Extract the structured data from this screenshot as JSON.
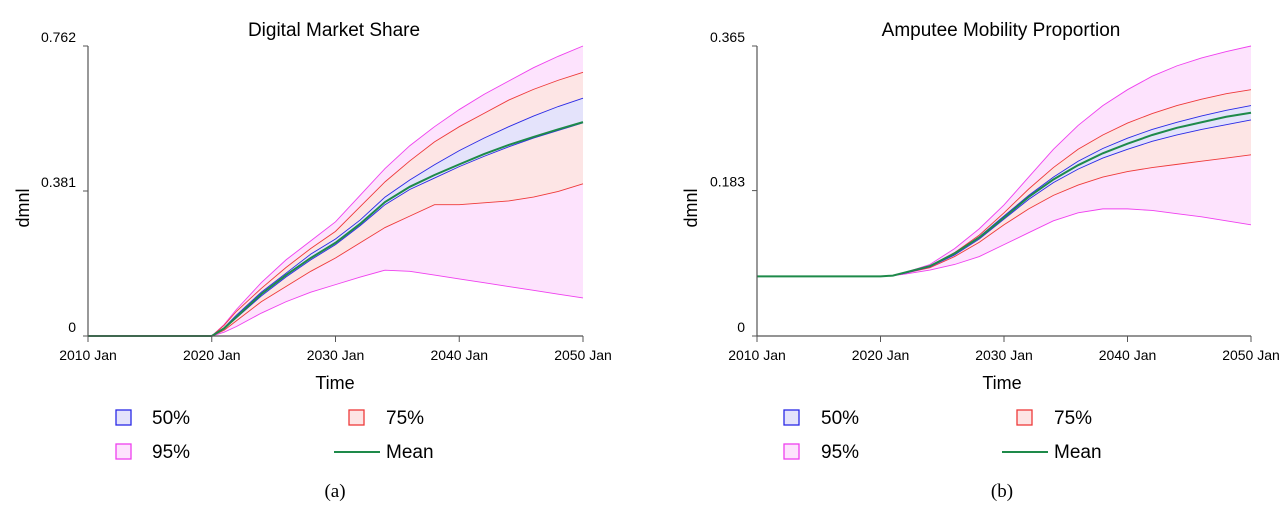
{
  "colors": {
    "band50": "#2a2ae6",
    "band50_fill": "#e4e3fb",
    "band75": "#ee3a3a",
    "band75_fill": "#fde5e5",
    "band95": "#ef40ef",
    "band95_fill": "#fde3fd",
    "mean": "#1e8a4a",
    "axis": "#555555"
  },
  "legend": {
    "p50": "50%",
    "p75": "75%",
    "p95": "95%",
    "mean": "Mean"
  },
  "chart_data": [
    {
      "type": "area",
      "panel": "a",
      "title": "Digital Market Share",
      "xlabel": "Time",
      "ylabel": "dmnl",
      "xlim": [
        2010,
        2050
      ],
      "ylim": [
        0,
        0.762
      ],
      "x_ticks": [
        2010,
        2020,
        2030,
        2040,
        2050
      ],
      "x_tick_labels": [
        "2010 Jan",
        "2020 Jan",
        "2030 Jan",
        "2040 Jan",
        "2050 Jan"
      ],
      "y_ticks": [
        0,
        0.381,
        0.762
      ],
      "y_tick_labels": [
        "0",
        "0.381",
        "0.762"
      ],
      "x": [
        2010,
        2012,
        2014,
        2016,
        2018,
        2019,
        2020,
        2021,
        2022,
        2024,
        2026,
        2028,
        2030,
        2032,
        2034,
        2036,
        2038,
        2040,
        2042,
        2044,
        2046,
        2048,
        2050
      ],
      "series": [
        {
          "name": "95%",
          "kind": "band",
          "lower": [
            0,
            0,
            0,
            0,
            0,
            0,
            0,
            0.01,
            0.025,
            0.06,
            0.09,
            0.115,
            0.135,
            0.155,
            0.173,
            0.17,
            0.16,
            0.15,
            0.14,
            0.13,
            0.12,
            0.11,
            0.1
          ],
          "upper": [
            0,
            0,
            0,
            0,
            0,
            0,
            0,
            0.03,
            0.07,
            0.14,
            0.2,
            0.25,
            0.3,
            0.37,
            0.44,
            0.5,
            0.55,
            0.595,
            0.635,
            0.67,
            0.705,
            0.735,
            0.762
          ]
        },
        {
          "name": "75%",
          "kind": "band",
          "lower": [
            0,
            0,
            0,
            0,
            0,
            0,
            0,
            0.015,
            0.04,
            0.09,
            0.13,
            0.17,
            0.205,
            0.245,
            0.285,
            0.315,
            0.345,
            0.345,
            0.35,
            0.355,
            0.365,
            0.38,
            0.4
          ],
          "upper": [
            0,
            0,
            0,
            0,
            0,
            0,
            0,
            0.028,
            0.065,
            0.125,
            0.18,
            0.23,
            0.275,
            0.34,
            0.405,
            0.46,
            0.51,
            0.55,
            0.585,
            0.62,
            0.648,
            0.672,
            0.693
          ]
        },
        {
          "name": "50%",
          "kind": "band",
          "lower": [
            0,
            0,
            0,
            0,
            0,
            0,
            0,
            0.02,
            0.048,
            0.105,
            0.155,
            0.2,
            0.24,
            0.29,
            0.345,
            0.385,
            0.415,
            0.445,
            0.472,
            0.497,
            0.52,
            0.54,
            0.56
          ],
          "upper": [
            0,
            0,
            0,
            0,
            0,
            0,
            0,
            0.022,
            0.055,
            0.115,
            0.165,
            0.215,
            0.255,
            0.305,
            0.365,
            0.41,
            0.45,
            0.487,
            0.52,
            0.55,
            0.578,
            0.603,
            0.625
          ]
        },
        {
          "name": "Mean",
          "kind": "line",
          "values": [
            0,
            0,
            0,
            0,
            0,
            0,
            0,
            0.02,
            0.05,
            0.11,
            0.16,
            0.205,
            0.245,
            0.295,
            0.352,
            0.392,
            0.423,
            0.451,
            0.478,
            0.502,
            0.523,
            0.543,
            0.562
          ]
        }
      ]
    },
    {
      "type": "area",
      "panel": "b",
      "title": "Amputee Mobility Proportion",
      "xlabel": "Time",
      "ylabel": "dmnl",
      "xlim": [
        2010,
        2050
      ],
      "ylim": [
        0,
        0.365
      ],
      "x_ticks": [
        2010,
        2020,
        2030,
        2040,
        2050
      ],
      "x_tick_labels": [
        "2010 Jan",
        "2020 Jan",
        "2030 Jan",
        "2040 Jan",
        "2050 Jan"
      ],
      "y_ticks": [
        0,
        0.183,
        0.365
      ],
      "y_tick_labels": [
        "0",
        "0.183",
        "0.365"
      ],
      "x": [
        2010,
        2012,
        2014,
        2016,
        2018,
        2020,
        2021,
        2022,
        2024,
        2026,
        2028,
        2030,
        2032,
        2034,
        2036,
        2038,
        2040,
        2042,
        2044,
        2046,
        2048,
        2050
      ],
      "series": [
        {
          "name": "95%",
          "kind": "band",
          "lower": [
            0.075,
            0.075,
            0.075,
            0.075,
            0.075,
            0.075,
            0.076,
            0.078,
            0.083,
            0.09,
            0.1,
            0.115,
            0.13,
            0.145,
            0.155,
            0.16,
            0.16,
            0.158,
            0.154,
            0.15,
            0.145,
            0.14
          ],
          "upper": [
            0.075,
            0.075,
            0.075,
            0.075,
            0.075,
            0.075,
            0.076,
            0.08,
            0.09,
            0.11,
            0.135,
            0.165,
            0.2,
            0.235,
            0.265,
            0.29,
            0.31,
            0.327,
            0.34,
            0.35,
            0.358,
            0.365
          ]
        },
        {
          "name": "75%",
          "kind": "band",
          "lower": [
            0.075,
            0.075,
            0.075,
            0.075,
            0.075,
            0.075,
            0.076,
            0.079,
            0.086,
            0.1,
            0.118,
            0.14,
            0.16,
            0.177,
            0.19,
            0.2,
            0.207,
            0.212,
            0.216,
            0.22,
            0.224,
            0.228
          ],
          "upper": [
            0.075,
            0.075,
            0.075,
            0.075,
            0.075,
            0.075,
            0.076,
            0.08,
            0.088,
            0.105,
            0.127,
            0.155,
            0.185,
            0.212,
            0.235,
            0.253,
            0.268,
            0.28,
            0.29,
            0.298,
            0.305,
            0.31
          ]
        },
        {
          "name": "50%",
          "kind": "band",
          "lower": [
            0.075,
            0.075,
            0.075,
            0.075,
            0.075,
            0.075,
            0.076,
            0.079,
            0.087,
            0.102,
            0.122,
            0.147,
            0.172,
            0.193,
            0.21,
            0.224,
            0.235,
            0.245,
            0.253,
            0.26,
            0.266,
            0.272
          ],
          "upper": [
            0.075,
            0.075,
            0.075,
            0.075,
            0.075,
            0.075,
            0.076,
            0.08,
            0.088,
            0.104,
            0.125,
            0.151,
            0.177,
            0.2,
            0.22,
            0.236,
            0.249,
            0.26,
            0.269,
            0.277,
            0.284,
            0.29
          ]
        },
        {
          "name": "Mean",
          "kind": "line",
          "values": [
            0.075,
            0.075,
            0.075,
            0.075,
            0.075,
            0.075,
            0.076,
            0.08,
            0.088,
            0.104,
            0.124,
            0.149,
            0.175,
            0.197,
            0.215,
            0.23,
            0.242,
            0.253,
            0.262,
            0.269,
            0.276,
            0.281
          ]
        }
      ]
    }
  ],
  "panel_labels": {
    "a": "(a)",
    "b": "(b)"
  }
}
